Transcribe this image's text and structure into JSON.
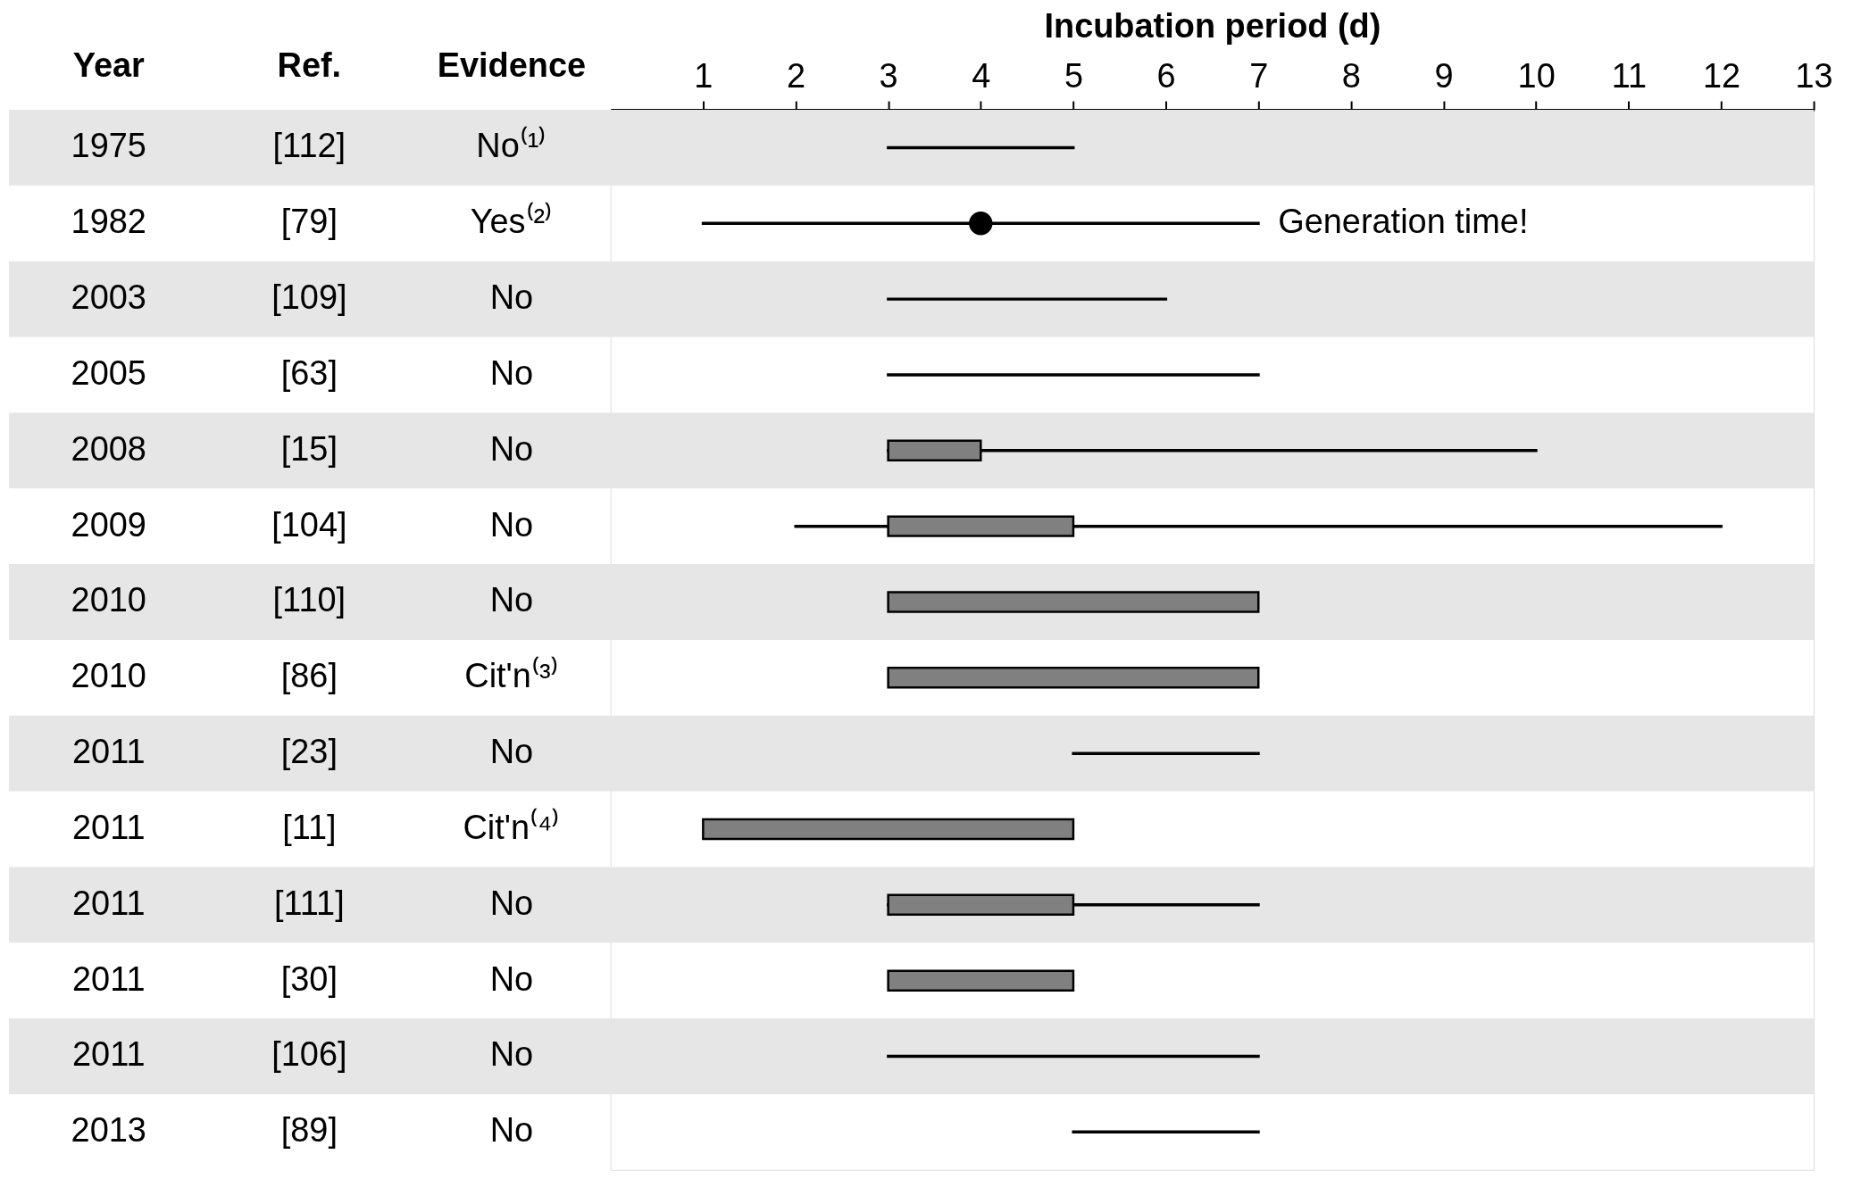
{
  "chart_data": {
    "type": "bar",
    "orientation": "horizontal",
    "xlabel": "Incubation period (d)",
    "categories": [
      "[112]",
      "[79]",
      "[109]",
      "[63]",
      "[15]",
      "[104]",
      "[110]",
      "[86]",
      "[23]",
      "[11]",
      "[111]",
      "[30]",
      "[106]",
      "[89]"
    ],
    "series": [
      {
        "type": "bar",
        "line_style": "solid",
        "color": "#000000",
        "base": [
          3,
          1,
          3,
          3,
          3,
          2,
          null,
          null,
          5,
          null,
          3,
          null,
          3,
          5
        ],
        "values": [
          2,
          6,
          3,
          4,
          7,
          10,
          null,
          null,
          2,
          null,
          4,
          null,
          4,
          2
        ]
      },
      {
        "type": "bar",
        "color": "#808080",
        "base": [
          null,
          null,
          null,
          null,
          3,
          3,
          3,
          3,
          null,
          1,
          3,
          3,
          null,
          null
        ],
        "values": [
          null,
          null,
          null,
          null,
          1,
          2,
          4,
          4,
          null,
          4,
          2,
          2,
          null,
          null
        ]
      },
      {
        "type": "scatter",
        "marker": "circle",
        "color": "#000000",
        "values": [
          null,
          4,
          null,
          null,
          null,
          null,
          null,
          null,
          null,
          null,
          null,
          null,
          null,
          null
        ]
      }
    ],
    "xlim": [
      0,
      13
    ],
    "xticks": [
      1,
      2,
      3,
      4,
      5,
      6,
      7,
      8,
      9,
      10,
      11,
      12,
      13
    ],
    "grid": false,
    "bands": [
      {
        "axis": "y",
        "from": "[112]",
        "to": "[112]",
        "color": "#e6e6e6"
      },
      {
        "axis": "y",
        "from": "[109]",
        "to": "[109]",
        "color": "#e6e6e6"
      },
      {
        "axis": "y",
        "from": "[15]",
        "to": "[15]",
        "color": "#e6e6e6"
      },
      {
        "axis": "y",
        "from": "[110]",
        "to": "[110]",
        "color": "#e6e6e6"
      },
      {
        "axis": "y",
        "from": "[23]",
        "to": "[23]",
        "color": "#e6e6e6"
      },
      {
        "axis": "y",
        "from": "[111]",
        "to": "[111]",
        "color": "#e6e6e6"
      },
      {
        "axis": "y",
        "from": "[106]",
        "to": "[106]",
        "color": "#e6e6e6"
      }
    ],
    "annotations": [
      "Year",
      "Ref.",
      "Evidence",
      "1975",
      "1982",
      "2003",
      "2005",
      "2008",
      "2009",
      "2010",
      "2010",
      "2011",
      "2011",
      "2011",
      "2011",
      "2011",
      "2013",
      "No⁽¹⁾",
      "Yes⁽²⁾",
      "No",
      "No",
      "No",
      "No",
      "No",
      "Cit'n⁽³⁾",
      "No",
      "Cit'n⁽⁴⁾",
      "No",
      "No",
      "No",
      "No",
      {
        "text": "Generation time!",
        "x": 7,
        "y": "[79]"
      }
    ]
  }
}
